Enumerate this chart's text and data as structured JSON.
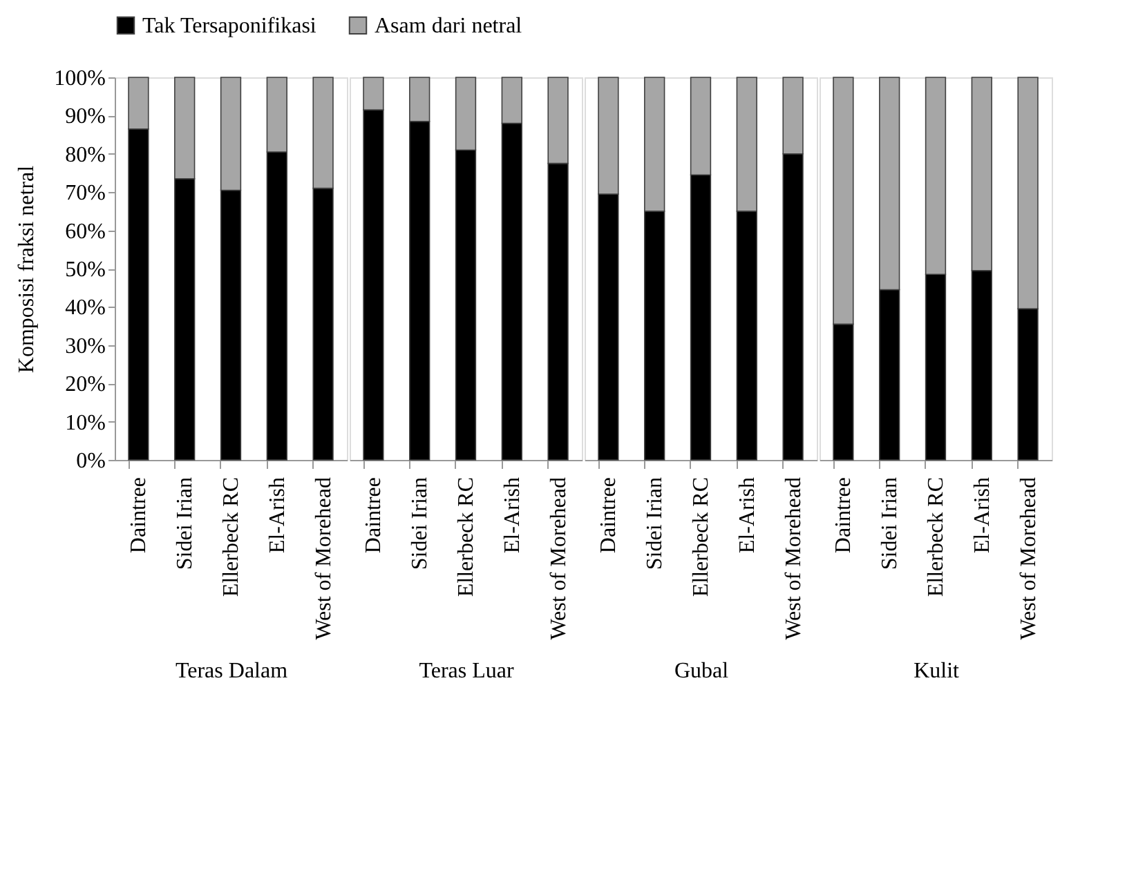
{
  "chart_data": [
    {
      "type": "bar",
      "stacked": true,
      "xlabel": "Teras Dalam",
      "ylabel": "Komposisi fraksi netral",
      "legend": "top",
      "grid": false,
      "categories": [
        "Daintree",
        "Sidei Irian",
        "Ellerbeck RC",
        "El-Arish",
        "West of Morehead"
      ],
      "ylim": [
        0,
        100
      ],
      "yticks": [
        {
          "value": 0,
          "label": "0%"
        },
        {
          "value": 10,
          "label": "10%"
        },
        {
          "value": 20,
          "label": "20%"
        },
        {
          "value": 30,
          "label": "30%"
        },
        {
          "value": 40,
          "label": "40%"
        },
        {
          "value": 50,
          "label": "50%"
        },
        {
          "value": 60,
          "label": "60%"
        },
        {
          "value": 70,
          "label": "70%"
        },
        {
          "value": 80,
          "label": "80%"
        },
        {
          "value": 90,
          "label": "90%"
        },
        {
          "value": 100,
          "label": "100%"
        }
      ],
      "series": [
        {
          "name": "Tak Tersaponifikasi",
          "color": "#000000",
          "values": [
            86.5,
            73.5,
            70.5,
            80.5,
            71
          ]
        },
        {
          "name": "Asam dari netral",
          "color": "#a6a6a6",
          "values": [
            13.5,
            26.5,
            29.5,
            19.5,
            29
          ]
        }
      ]
    },
    {
      "type": "bar",
      "stacked": true,
      "xlabel": "Teras Luar",
      "tick_labels": "x",
      "grid": false,
      "categories": [
        "Daintree",
        "Sidei Irian",
        "Ellerbeck RC",
        "El-Arish",
        "West of Morehead"
      ],
      "ylim": [
        0,
        100
      ],
      "series": [
        {
          "color": "#000000",
          "values": [
            91.5,
            88.5,
            81,
            88,
            77.5
          ]
        },
        {
          "color": "#a6a6a6",
          "values": [
            8.5,
            11.5,
            19,
            12,
            22.5
          ]
        }
      ]
    },
    {
      "type": "bar",
      "stacked": true,
      "xlabel": "Gubal",
      "tick_labels": "x",
      "grid": false,
      "categories": [
        "Daintree",
        "Sidei Irian",
        "Ellerbeck RC",
        "El-Arish",
        "West of Morehead"
      ],
      "ylim": [
        0,
        100
      ],
      "series": [
        {
          "color": "#000000",
          "values": [
            69.5,
            65,
            74.5,
            65,
            80
          ]
        },
        {
          "color": "#a6a6a6",
          "values": [
            30.5,
            35,
            25.5,
            35,
            20
          ]
        }
      ]
    },
    {
      "type": "bar",
      "stacked": true,
      "xlabel": "Kulit",
      "tick_labels": "x",
      "grid": false,
      "categories": [
        "Daintree",
        "Sidei Irian",
        "Ellerbeck RC",
        "El-Arish",
        "West of Morehead"
      ],
      "ylim": [
        0,
        100
      ],
      "series": [
        {
          "color": "#000000",
          "values": [
            35.5,
            44.5,
            48.5,
            49.5,
            39.5
          ]
        },
        {
          "color": "#a6a6a6",
          "values": [
            64.5,
            55.5,
            51.5,
            50.5,
            60.5
          ]
        }
      ]
    }
  ]
}
